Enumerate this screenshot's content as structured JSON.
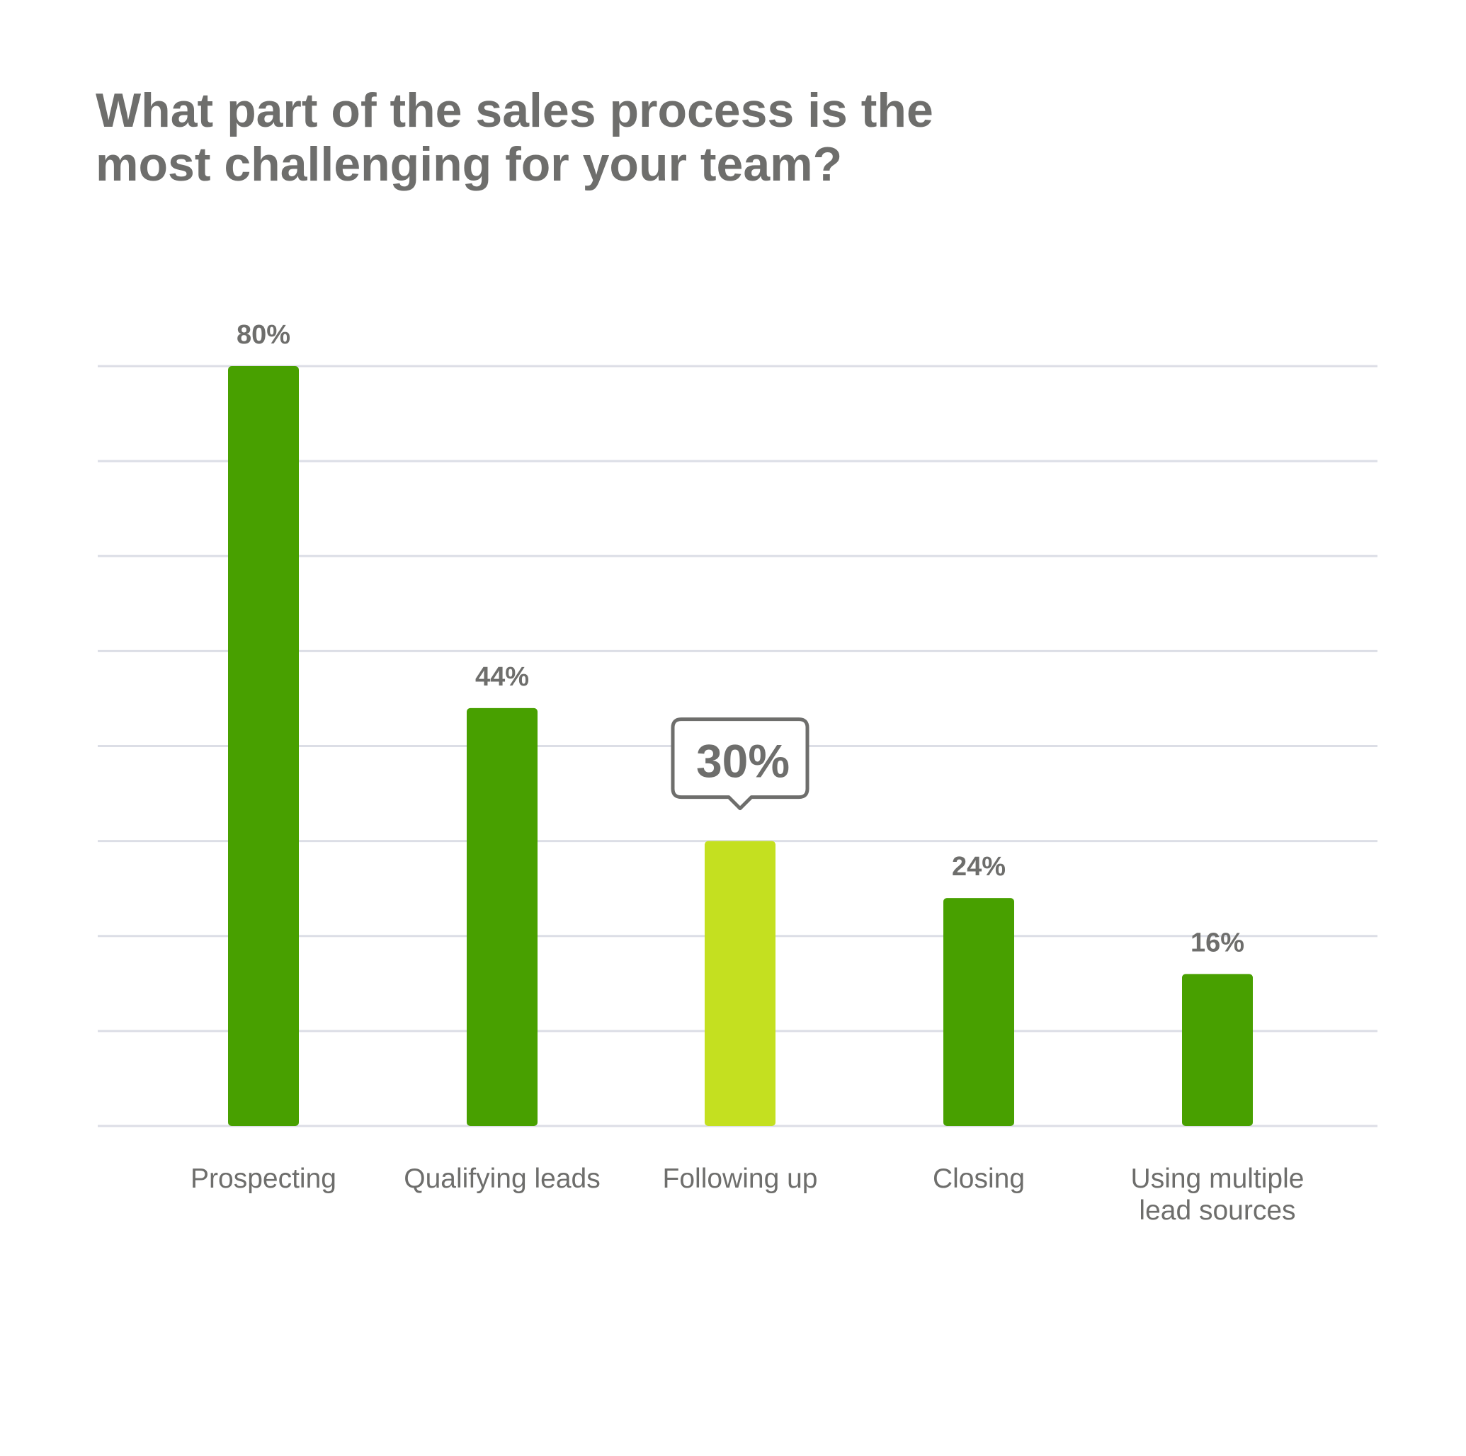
{
  "chart_data": {
    "type": "bar",
    "title_lines": [
      "What part of the sales process is the",
      "most challenging for your team?"
    ],
    "categories": [
      [
        "Prospecting"
      ],
      [
        "Qualifying leads"
      ],
      [
        "Following up"
      ],
      [
        "Closing"
      ],
      [
        "Using multiple",
        "lead sources"
      ]
    ],
    "values": [
      80,
      44,
      30,
      24,
      16
    ],
    "value_labels": [
      "80%",
      "44%",
      "30%",
      "24%",
      "16%"
    ],
    "highlight_index": 2,
    "ylim": [
      0,
      80
    ],
    "gridline_step": 10,
    "grid": true,
    "colors": {
      "bar": "#48a000",
      "highlight_bar": "#c4e020",
      "grid": "#dcdee6",
      "text": "#6e6e6c",
      "callout_border": "#6e6e6c"
    }
  }
}
